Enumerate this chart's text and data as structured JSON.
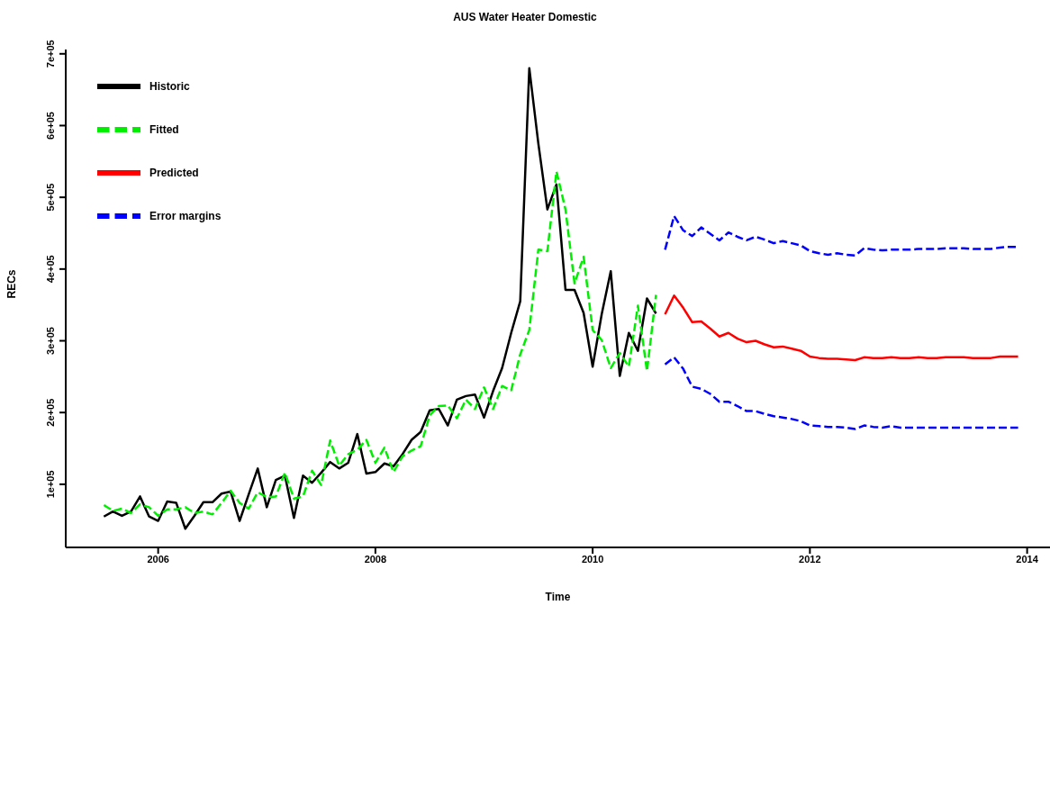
{
  "chart_data": {
    "type": "line",
    "title": "AUS Water Heater Domestic",
    "xlabel": "Time",
    "ylabel": "RECs",
    "xlim": [
      "2005-02-25",
      "2014-03-17"
    ],
    "xticks": [
      "2006",
      "2008",
      "2010",
      "2012",
      "2014"
    ],
    "ylim": [
      12000,
      706000
    ],
    "yticks": [
      {
        "value": 100000,
        "label": "1e+05"
      },
      {
        "value": 200000,
        "label": "2e+05"
      },
      {
        "value": 300000,
        "label": "3e+05"
      },
      {
        "value": 400000,
        "label": "4e+05"
      },
      {
        "value": 500000,
        "label": "5e+05"
      },
      {
        "value": 600000,
        "label": "6e+05"
      },
      {
        "value": 700000,
        "label": "7e+05"
      }
    ],
    "grid": false,
    "legend": "top left",
    "marker": "none",
    "series": [
      {
        "name": "Historic",
        "color": "#000000",
        "line_style": "solid",
        "x": [
          "2005-07",
          "2005-08",
          "2005-09",
          "2005-10",
          "2005-11",
          "2005-12",
          "2006-01",
          "2006-02",
          "2006-03",
          "2006-04",
          "2006-05",
          "2006-06",
          "2006-07",
          "2006-08",
          "2006-09",
          "2006-10",
          "2006-11",
          "2006-12",
          "2007-01",
          "2007-02",
          "2007-03",
          "2007-04",
          "2007-05",
          "2007-06",
          "2007-07",
          "2007-08",
          "2007-09",
          "2007-10",
          "2007-11",
          "2007-12",
          "2008-01",
          "2008-02",
          "2008-03",
          "2008-04",
          "2008-05",
          "2008-06",
          "2008-07",
          "2008-08",
          "2008-09",
          "2008-10",
          "2008-11",
          "2008-12",
          "2009-01",
          "2009-02",
          "2009-03",
          "2009-04",
          "2009-05",
          "2009-06",
          "2009-07",
          "2009-08",
          "2009-09",
          "2009-10",
          "2009-11",
          "2009-12",
          "2010-01",
          "2010-02",
          "2010-03",
          "2010-04",
          "2010-05",
          "2010-06",
          "2010-07",
          "2010-08"
        ],
        "values": [
          55000,
          62000,
          56000,
          62000,
          83000,
          55000,
          49000,
          76000,
          74000,
          38000,
          56000,
          75000,
          75000,
          87000,
          90000,
          49000,
          86000,
          122000,
          68000,
          106000,
          112000,
          53000,
          112000,
          102000,
          116000,
          131000,
          122000,
          130000,
          170000,
          115000,
          117000,
          129000,
          125000,
          142000,
          162000,
          173000,
          203000,
          205000,
          182000,
          218000,
          223000,
          225000,
          193000,
          230000,
          262000,
          311000,
          355000,
          680000,
          575000,
          483000,
          518000,
          371000,
          371000,
          339000,
          264000,
          337000,
          397000,
          251000,
          311000,
          286000,
          359000,
          338000
        ]
      },
      {
        "name": "Fitted",
        "color": "#00ee00",
        "line_style": "dashed",
        "x": [
          "2005-07",
          "2005-08",
          "2005-09",
          "2005-10",
          "2005-11",
          "2005-12",
          "2006-01",
          "2006-02",
          "2006-03",
          "2006-04",
          "2006-05",
          "2006-06",
          "2006-07",
          "2006-08",
          "2006-09",
          "2006-10",
          "2006-11",
          "2006-12",
          "2007-01",
          "2007-02",
          "2007-03",
          "2007-04",
          "2007-05",
          "2007-06",
          "2007-07",
          "2007-08",
          "2007-09",
          "2007-10",
          "2007-11",
          "2007-12",
          "2008-01",
          "2008-02",
          "2008-03",
          "2008-04",
          "2008-05",
          "2008-06",
          "2008-07",
          "2008-08",
          "2008-09",
          "2008-10",
          "2008-11",
          "2008-12",
          "2009-01",
          "2009-02",
          "2009-03",
          "2009-04",
          "2009-05",
          "2009-06",
          "2009-07",
          "2009-08",
          "2009-09",
          "2009-10",
          "2009-11",
          "2009-12",
          "2010-01",
          "2010-02",
          "2010-03",
          "2010-04",
          "2010-05",
          "2010-06",
          "2010-07",
          "2010-08"
        ],
        "values": [
          71000,
          63000,
          66000,
          60000,
          72000,
          68000,
          56000,
          65000,
          65000,
          68000,
          60000,
          62000,
          58000,
          74000,
          91000,
          74000,
          66000,
          89000,
          82000,
          83000,
          116000,
          80000,
          83000,
          119000,
          99000,
          161000,
          126000,
          142000,
          148000,
          162000,
          130000,
          151000,
          117000,
          139000,
          147000,
          153000,
          196000,
          209000,
          210000,
          192000,
          218000,
          205000,
          235000,
          205000,
          237000,
          231000,
          281000,
          315000,
          427000,
          425000,
          536000,
          483000,
          380000,
          417000,
          315000,
          301000,
          262000,
          283000,
          264000,
          349000,
          258000,
          364000
        ]
      },
      {
        "name": "Predicted",
        "color": "#ff0000",
        "line_style": "solid",
        "x": [
          "2010-09",
          "2010-10",
          "2010-11",
          "2010-12",
          "2011-01",
          "2011-02",
          "2011-03",
          "2011-04",
          "2011-05",
          "2011-06",
          "2011-07",
          "2011-08",
          "2011-09",
          "2011-10",
          "2011-11",
          "2011-12",
          "2012-01",
          "2012-02",
          "2012-03",
          "2012-04",
          "2012-05",
          "2012-06",
          "2012-07",
          "2012-08",
          "2012-09",
          "2012-10",
          "2012-11",
          "2012-12",
          "2013-01",
          "2013-02",
          "2013-03",
          "2013-04",
          "2013-05",
          "2013-06",
          "2013-07",
          "2013-08",
          "2013-09",
          "2013-10",
          "2013-11",
          "2013-12"
        ],
        "values": [
          337000,
          363000,
          346000,
          326000,
          327000,
          317000,
          306000,
          311000,
          303000,
          298000,
          300000,
          295000,
          291000,
          292000,
          289000,
          286000,
          278000,
          276000,
          275000,
          275000,
          274000,
          273000,
          277000,
          276000,
          276000,
          277000,
          276000,
          276000,
          277000,
          276000,
          276000,
          277000,
          277000,
          277000,
          276000,
          276000,
          276000,
          278000,
          278000,
          278000
        ]
      },
      {
        "name": "Error margins",
        "color": "#0000ff",
        "line_style": "dashed",
        "x": [
          "2010-09",
          "2010-10",
          "2010-11",
          "2010-12",
          "2011-01",
          "2011-02",
          "2011-03",
          "2011-04",
          "2011-05",
          "2011-06",
          "2011-07",
          "2011-08",
          "2011-09",
          "2011-10",
          "2011-11",
          "2011-12",
          "2012-01",
          "2012-02",
          "2012-03",
          "2012-04",
          "2012-05",
          "2012-06",
          "2012-07",
          "2012-08",
          "2012-09",
          "2012-10",
          "2012-11",
          "2012-12",
          "2013-01",
          "2013-02",
          "2013-03",
          "2013-04",
          "2013-05",
          "2013-06",
          "2013-07",
          "2013-08",
          "2013-09",
          "2013-10",
          "2013-11",
          "2013-12"
        ],
        "values": [
          427000,
          474000,
          454000,
          446000,
          458000,
          449000,
          440000,
          451000,
          445000,
          440000,
          445000,
          441000,
          436000,
          439000,
          436000,
          433000,
          425000,
          422000,
          420000,
          422000,
          420000,
          419000,
          429000,
          427000,
          426000,
          427000,
          427000,
          427000,
          428000,
          428000,
          428000,
          429000,
          429000,
          429000,
          428000,
          428000,
          428000,
          430000,
          431000,
          431000
        ]
      },
      {
        "color": "#0000ff",
        "line_style": "dashed",
        "x": [
          "2010-09",
          "2010-10",
          "2010-11",
          "2010-12",
          "2011-01",
          "2011-02",
          "2011-03",
          "2011-04",
          "2011-05",
          "2011-06",
          "2011-07",
          "2011-08",
          "2011-09",
          "2011-10",
          "2011-11",
          "2011-12",
          "2012-01",
          "2012-02",
          "2012-03",
          "2012-04",
          "2012-05",
          "2012-06",
          "2012-07",
          "2012-08",
          "2012-09",
          "2012-10",
          "2012-11",
          "2012-12",
          "2013-01",
          "2013-02",
          "2013-03",
          "2013-04",
          "2013-05",
          "2013-06",
          "2013-07",
          "2013-08",
          "2013-09",
          "2013-10",
          "2013-11",
          "2013-12"
        ],
        "values": [
          267000,
          277000,
          261000,
          236000,
          233000,
          226000,
          215000,
          215000,
          209000,
          202000,
          202000,
          198000,
          195000,
          193000,
          191000,
          188000,
          182000,
          181000,
          180000,
          180000,
          179000,
          177000,
          182000,
          180000,
          179000,
          181000,
          179000,
          179000,
          179000,
          179000,
          179000,
          179000,
          179000,
          179000,
          179000,
          179000,
          179000,
          179000,
          179000,
          179000
        ]
      }
    ]
  }
}
